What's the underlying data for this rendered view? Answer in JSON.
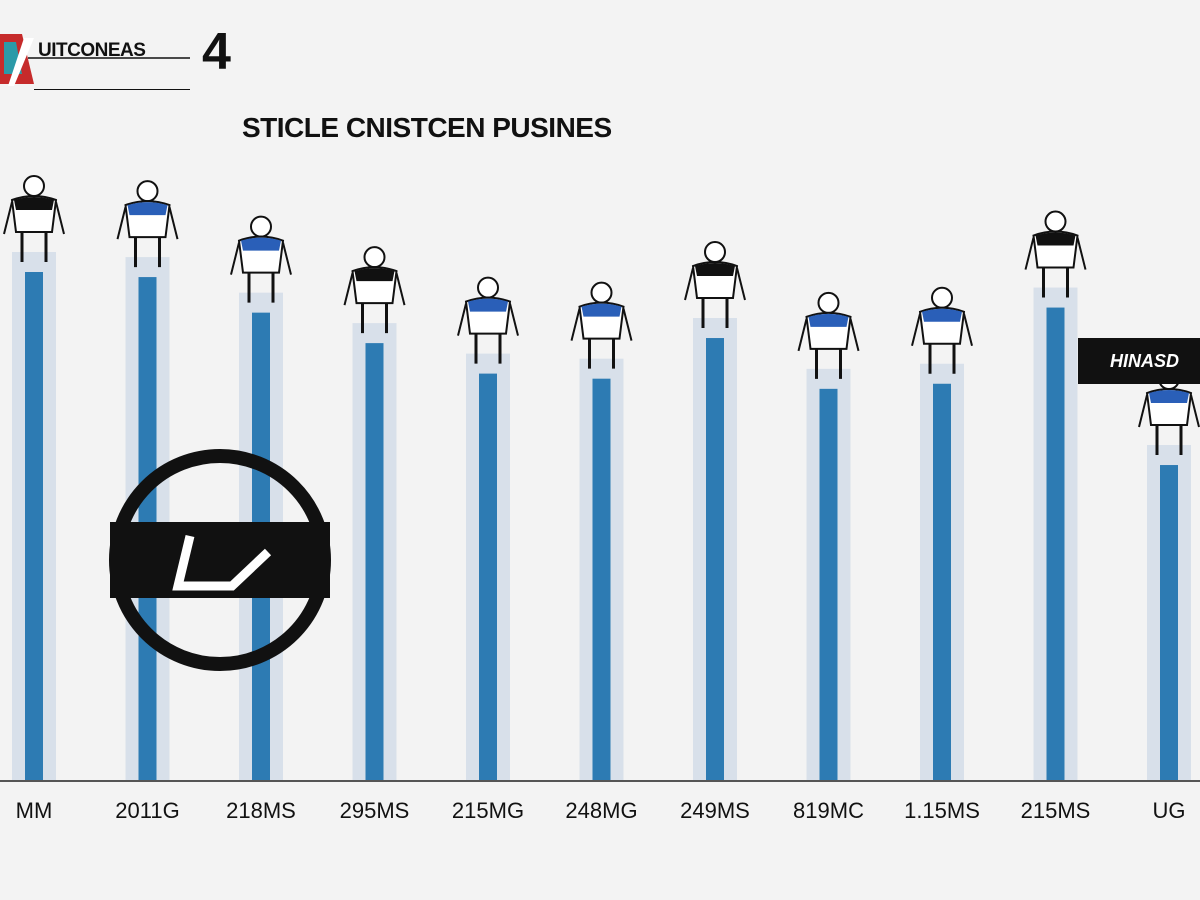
{
  "header": {
    "logo_text": "UITCONEAS",
    "logo_number": "4"
  },
  "chart_data": {
    "type": "bar",
    "title": "STICLE CNISTCEN PUSINES",
    "categories": [
      "MM",
      "2011G",
      "218MS",
      "295MS",
      "215MG",
      "248MG",
      "249MS",
      "819MC",
      "1.15MS",
      "215MS",
      "UG"
    ],
    "values": [
      100,
      99,
      92,
      86,
      80,
      79,
      87,
      77,
      78,
      93,
      62
    ],
    "ylim": [
      0,
      100
    ],
    "xlabel": "",
    "ylabel": "",
    "grid": false,
    "legend": "none",
    "colors": {
      "bar": "#2d7bb3",
      "backdrop": "#d8e0ea",
      "axis": "#555555",
      "background": "#f3f3f3"
    }
  },
  "annotations": {
    "callout_label": "HINASD",
    "badge_icon": "no-entry-circle-icon",
    "figure_icons": [
      "athlete-figure-icon"
    ]
  }
}
